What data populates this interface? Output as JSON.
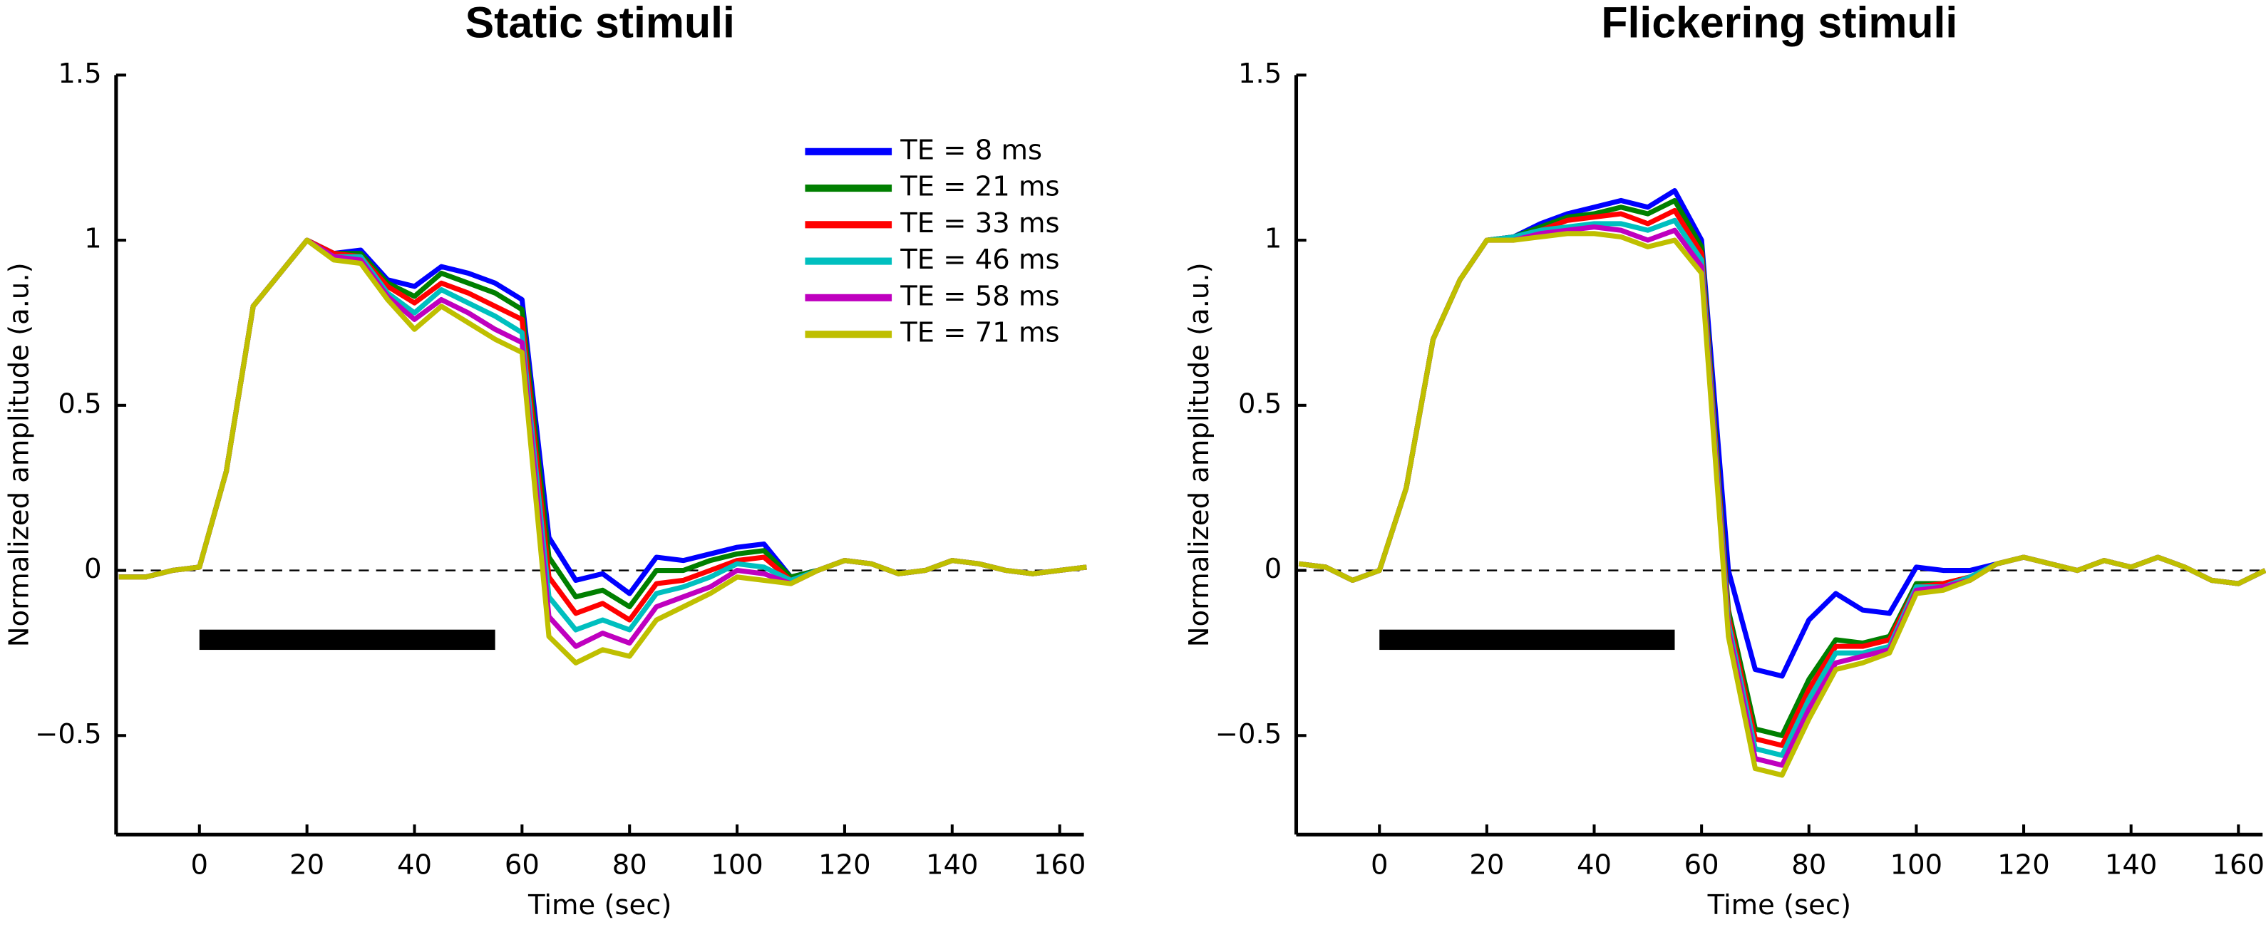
{
  "chart_data": [
    {
      "type": "line",
      "title": "Static stimuli",
      "xlabel": "Time (sec)",
      "ylabel": "Normalized amplitude (a.u.)",
      "x": [
        -15,
        -10,
        -5,
        0,
        5,
        10,
        15,
        20,
        25,
        30,
        35,
        40,
        45,
        50,
        55,
        60,
        65,
        70,
        75,
        80,
        85,
        90,
        95,
        100,
        105,
        110,
        115,
        120,
        125,
        130,
        135,
        140,
        145,
        150,
        155,
        160,
        165
      ],
      "xlim": [
        -15.5,
        164.5
      ],
      "xticks": [
        0,
        20,
        40,
        60,
        80,
        100,
        120,
        140,
        160
      ],
      "ylim": [
        -0.8,
        1.5
      ],
      "yticks": [
        {
          "value": -0.5,
          "label": "−0.5"
        },
        0,
        0.5,
        1,
        1.5
      ],
      "reference_line": 0,
      "stimulus_bar": {
        "x": [
          0,
          55
        ],
        "y": -0.21
      },
      "legend": "upper right",
      "series": [
        {
          "name": "TE = 8 ms",
          "color": "#0000ff",
          "values": [
            -0.02,
            -0.02,
            0.0,
            0.01,
            0.3,
            0.8,
            0.9,
            1.0,
            0.96,
            0.97,
            0.88,
            0.86,
            0.92,
            0.9,
            0.87,
            0.82,
            0.1,
            -0.03,
            -0.01,
            -0.07,
            0.04,
            0.03,
            0.05,
            0.07,
            0.08,
            -0.02,
            0.0,
            0.03,
            0.02,
            -0.01,
            0.0,
            0.03,
            0.02,
            0.0,
            -0.01,
            0.0,
            0.01
          ]
        },
        {
          "name": "TE = 21 ms",
          "color": "#007f00",
          "values": [
            -0.02,
            -0.02,
            0.0,
            0.01,
            0.3,
            0.8,
            0.9,
            1.0,
            0.96,
            0.96,
            0.87,
            0.83,
            0.9,
            0.87,
            0.84,
            0.79,
            0.04,
            -0.08,
            -0.06,
            -0.11,
            0.0,
            0.0,
            0.03,
            0.05,
            0.06,
            -0.02,
            0.0,
            0.03,
            0.02,
            -0.01,
            0.0,
            0.03,
            0.02,
            0.0,
            -0.01,
            0.0,
            0.01
          ]
        },
        {
          "name": "TE = 33 ms",
          "color": "#ff0000",
          "values": [
            -0.02,
            -0.02,
            0.0,
            0.01,
            0.3,
            0.8,
            0.9,
            1.0,
            0.96,
            0.95,
            0.86,
            0.81,
            0.87,
            0.84,
            0.8,
            0.76,
            -0.02,
            -0.13,
            -0.1,
            -0.15,
            -0.04,
            -0.03,
            0.0,
            0.03,
            0.04,
            -0.03,
            0.0,
            0.03,
            0.02,
            -0.01,
            0.0,
            0.03,
            0.02,
            0.0,
            -0.01,
            0.0,
            0.01
          ]
        },
        {
          "name": "TE = 46 ms",
          "color": "#00bfbf",
          "values": [
            -0.02,
            -0.02,
            0.0,
            0.01,
            0.3,
            0.8,
            0.9,
            1.0,
            0.95,
            0.95,
            0.84,
            0.78,
            0.85,
            0.81,
            0.77,
            0.72,
            -0.08,
            -0.18,
            -0.15,
            -0.18,
            -0.07,
            -0.05,
            -0.02,
            0.02,
            0.01,
            -0.03,
            0.0,
            0.03,
            0.02,
            -0.01,
            0.0,
            0.03,
            0.02,
            0.0,
            -0.01,
            0.0,
            0.01
          ]
        },
        {
          "name": "TE = 58 ms",
          "color": "#bf00bf",
          "values": [
            -0.02,
            -0.02,
            0.0,
            0.01,
            0.3,
            0.8,
            0.9,
            1.0,
            0.95,
            0.94,
            0.83,
            0.76,
            0.82,
            0.78,
            0.73,
            0.69,
            -0.14,
            -0.23,
            -0.19,
            -0.22,
            -0.11,
            -0.08,
            -0.05,
            0.0,
            -0.01,
            -0.04,
            0.0,
            0.03,
            0.02,
            -0.01,
            0.0,
            0.03,
            0.02,
            0.0,
            -0.01,
            0.0,
            0.01
          ]
        },
        {
          "name": "TE = 71 ms",
          "color": "#bfbf00",
          "values": [
            -0.02,
            -0.02,
            0.0,
            0.01,
            0.3,
            0.8,
            0.9,
            1.0,
            0.94,
            0.93,
            0.82,
            0.73,
            0.8,
            0.75,
            0.7,
            0.66,
            -0.2,
            -0.28,
            -0.24,
            -0.26,
            -0.15,
            -0.11,
            -0.07,
            -0.02,
            -0.03,
            -0.04,
            0.0,
            0.03,
            0.02,
            -0.01,
            0.0,
            0.03,
            0.02,
            0.0,
            -0.01,
            0.0,
            0.01
          ]
        }
      ]
    },
    {
      "type": "line",
      "title": "Flickering stimuli",
      "xlabel": "Time (sec)",
      "ylabel": "Normalized amplitude (a.u.)",
      "x": [
        -15,
        -10,
        -5,
        0,
        5,
        10,
        15,
        20,
        25,
        30,
        35,
        40,
        45,
        50,
        55,
        60,
        65,
        70,
        75,
        80,
        85,
        90,
        95,
        100,
        105,
        110,
        115,
        120,
        125,
        130,
        135,
        140,
        145,
        150,
        155,
        160,
        165
      ],
      "xlim": [
        -15.5,
        164.5
      ],
      "xticks": [
        0,
        20,
        40,
        60,
        80,
        100,
        120,
        140,
        160
      ],
      "ylim": [
        -0.8,
        1.5
      ],
      "yticks": [
        {
          "value": -0.5,
          "label": "−0.5"
        },
        0,
        0.5,
        1,
        1.5
      ],
      "reference_line": 0,
      "stimulus_bar": {
        "x": [
          0,
          55
        ],
        "y": -0.21
      },
      "series": [
        {
          "color": "#0000ff",
          "values": [
            0.02,
            0.01,
            -0.03,
            0.0,
            0.25,
            0.7,
            0.88,
            1.0,
            1.01,
            1.05,
            1.08,
            1.1,
            1.12,
            1.1,
            1.15,
            1.0,
            0.0,
            -0.3,
            -0.32,
            -0.15,
            -0.07,
            -0.12,
            -0.13,
            0.01,
            0.0,
            0.0,
            0.02,
            0.04,
            0.02,
            0.0,
            0.03,
            0.01,
            0.04,
            0.01,
            -0.03,
            -0.04,
            0.0
          ]
        },
        {
          "color": "#007f00",
          "values": [
            0.02,
            0.01,
            -0.03,
            0.0,
            0.25,
            0.7,
            0.88,
            1.0,
            1.01,
            1.04,
            1.07,
            1.08,
            1.1,
            1.08,
            1.12,
            0.98,
            -0.12,
            -0.48,
            -0.5,
            -0.33,
            -0.21,
            -0.22,
            -0.2,
            -0.04,
            -0.04,
            -0.02,
            0.02,
            0.04,
            0.02,
            0.0,
            0.03,
            0.01,
            0.04,
            0.01,
            -0.03,
            -0.04,
            0.0
          ]
        },
        {
          "color": "#ff0000",
          "values": [
            0.02,
            0.01,
            -0.03,
            0.0,
            0.25,
            0.7,
            0.88,
            1.0,
            1.01,
            1.03,
            1.06,
            1.07,
            1.08,
            1.05,
            1.09,
            0.96,
            -0.14,
            -0.51,
            -0.53,
            -0.36,
            -0.23,
            -0.23,
            -0.21,
            -0.05,
            -0.04,
            -0.02,
            0.02,
            0.04,
            0.02,
            0.0,
            0.03,
            0.01,
            0.04,
            0.01,
            -0.03,
            -0.04,
            0.0
          ]
        },
        {
          "color": "#00bfbf",
          "values": [
            0.02,
            0.01,
            -0.03,
            0.0,
            0.25,
            0.7,
            0.88,
            1.0,
            1.01,
            1.03,
            1.04,
            1.05,
            1.05,
            1.03,
            1.06,
            0.94,
            -0.16,
            -0.54,
            -0.56,
            -0.39,
            -0.25,
            -0.25,
            -0.23,
            -0.05,
            -0.05,
            -0.02,
            0.02,
            0.04,
            0.02,
            0.0,
            0.03,
            0.01,
            0.04,
            0.01,
            -0.03,
            -0.04,
            0.0
          ]
        },
        {
          "color": "#bf00bf",
          "values": [
            0.02,
            0.01,
            -0.03,
            0.0,
            0.25,
            0.7,
            0.88,
            1.0,
            1.0,
            1.02,
            1.03,
            1.04,
            1.03,
            1.0,
            1.03,
            0.92,
            -0.18,
            -0.57,
            -0.59,
            -0.42,
            -0.28,
            -0.26,
            -0.24,
            -0.06,
            -0.05,
            -0.03,
            0.02,
            0.04,
            0.02,
            0.0,
            0.03,
            0.01,
            0.04,
            0.01,
            -0.03,
            -0.04,
            0.0
          ]
        },
        {
          "color": "#bfbf00",
          "values": [
            0.02,
            0.01,
            -0.03,
            0.0,
            0.25,
            0.7,
            0.88,
            1.0,
            1.0,
            1.01,
            1.02,
            1.02,
            1.01,
            0.98,
            1.0,
            0.9,
            -0.2,
            -0.6,
            -0.62,
            -0.45,
            -0.3,
            -0.28,
            -0.25,
            -0.07,
            -0.06,
            -0.03,
            0.02,
            0.04,
            0.02,
            0.0,
            0.03,
            0.01,
            0.04,
            0.01,
            -0.03,
            -0.04,
            0.0
          ]
        }
      ]
    }
  ]
}
